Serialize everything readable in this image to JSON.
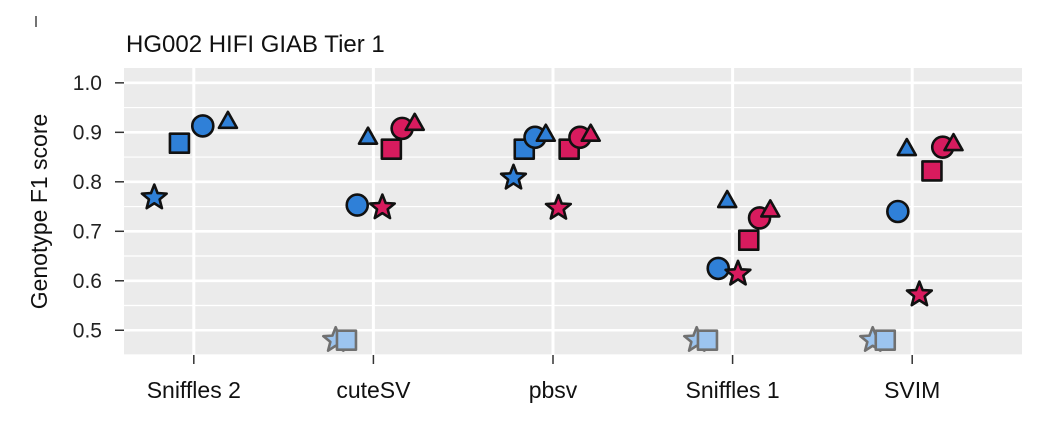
{
  "chart_data": {
    "type": "scatter",
    "title": "HG002 HIFI GIAB Tier 1",
    "xlabel": "",
    "ylabel": "Genotype F1 score",
    "ylim": [
      0.45,
      1.03
    ],
    "yticks": [
      "0.5",
      "0.6",
      "0.7",
      "0.8",
      "0.9",
      "1.0"
    ],
    "categories": [
      "Sniffles 2",
      "cuteSV",
      "pbsv",
      "Sniffles 1",
      "SVIM"
    ],
    "grid": true,
    "colors": {
      "blue": "#2f80d8",
      "red": "#d81b5e",
      "light_blue": "#9cc4ef",
      "light_edge": "#707070",
      "panel": "#ebebeb",
      "grid": "#ffffff"
    },
    "points": [
      {
        "category": "Sniffles 2",
        "offset": -0.22,
        "y": 0.768,
        "shape": "star",
        "color": "blue"
      },
      {
        "category": "Sniffles 2",
        "offset": -0.08,
        "y": 0.878,
        "shape": "square",
        "color": "blue"
      },
      {
        "category": "Sniffles 2",
        "offset": 0.05,
        "y": 0.913,
        "shape": "circle",
        "color": "blue"
      },
      {
        "category": "Sniffles 2",
        "offset": 0.19,
        "y": 0.922,
        "shape": "triangle",
        "color": "blue"
      },
      {
        "category": "cuteSV",
        "offset": -0.21,
        "y": 0.48,
        "shape": "star",
        "color": "light"
      },
      {
        "category": "cuteSV",
        "offset": -0.15,
        "y": 0.48,
        "shape": "square",
        "color": "light"
      },
      {
        "category": "cuteSV",
        "offset": -0.09,
        "y": 0.753,
        "shape": "circle",
        "color": "blue"
      },
      {
        "category": "cuteSV",
        "offset": -0.03,
        "y": 0.89,
        "shape": "triangle",
        "color": "blue"
      },
      {
        "category": "cuteSV",
        "offset": 0.05,
        "y": 0.748,
        "shape": "star",
        "color": "red"
      },
      {
        "category": "cuteSV",
        "offset": 0.1,
        "y": 0.866,
        "shape": "square",
        "color": "red"
      },
      {
        "category": "cuteSV",
        "offset": 0.16,
        "y": 0.908,
        "shape": "circle",
        "color": "red"
      },
      {
        "category": "cuteSV",
        "offset": 0.23,
        "y": 0.918,
        "shape": "triangle",
        "color": "red"
      },
      {
        "category": "pbsv",
        "offset": -0.22,
        "y": 0.808,
        "shape": "star",
        "color": "blue"
      },
      {
        "category": "pbsv",
        "offset": -0.16,
        "y": 0.866,
        "shape": "square",
        "color": "blue"
      },
      {
        "category": "pbsv",
        "offset": -0.1,
        "y": 0.89,
        "shape": "circle",
        "color": "blue"
      },
      {
        "category": "pbsv",
        "offset": -0.04,
        "y": 0.896,
        "shape": "triangle",
        "color": "blue"
      },
      {
        "category": "pbsv",
        "offset": 0.03,
        "y": 0.747,
        "shape": "star",
        "color": "red"
      },
      {
        "category": "pbsv",
        "offset": 0.09,
        "y": 0.866,
        "shape": "square",
        "color": "red"
      },
      {
        "category": "pbsv",
        "offset": 0.15,
        "y": 0.89,
        "shape": "circle",
        "color": "red"
      },
      {
        "category": "pbsv",
        "offset": 0.21,
        "y": 0.896,
        "shape": "triangle",
        "color": "red"
      },
      {
        "category": "Sniffles 1",
        "offset": -0.2,
        "y": 0.48,
        "shape": "star",
        "color": "light"
      },
      {
        "category": "Sniffles 1",
        "offset": -0.14,
        "y": 0.48,
        "shape": "square",
        "color": "light"
      },
      {
        "category": "Sniffles 1",
        "offset": -0.08,
        "y": 0.625,
        "shape": "circle",
        "color": "blue"
      },
      {
        "category": "Sniffles 1",
        "offset": -0.03,
        "y": 0.762,
        "shape": "triangle",
        "color": "blue"
      },
      {
        "category": "Sniffles 1",
        "offset": 0.03,
        "y": 0.614,
        "shape": "star",
        "color": "red"
      },
      {
        "category": "Sniffles 1",
        "offset": 0.09,
        "y": 0.682,
        "shape": "square",
        "color": "red"
      },
      {
        "category": "Sniffles 1",
        "offset": 0.15,
        "y": 0.727,
        "shape": "circle",
        "color": "red"
      },
      {
        "category": "Sniffles 1",
        "offset": 0.21,
        "y": 0.743,
        "shape": "triangle",
        "color": "red"
      },
      {
        "category": "SVIM",
        "offset": -0.22,
        "y": 0.48,
        "shape": "star",
        "color": "light"
      },
      {
        "category": "SVIM",
        "offset": -0.15,
        "y": 0.48,
        "shape": "square",
        "color": "light"
      },
      {
        "category": "SVIM",
        "offset": -0.08,
        "y": 0.74,
        "shape": "circle",
        "color": "blue"
      },
      {
        "category": "SVIM",
        "offset": -0.03,
        "y": 0.867,
        "shape": "triangle",
        "color": "blue"
      },
      {
        "category": "SVIM",
        "offset": 0.04,
        "y": 0.572,
        "shape": "star",
        "color": "red"
      },
      {
        "category": "SVIM",
        "offset": 0.11,
        "y": 0.822,
        "shape": "square",
        "color": "red"
      },
      {
        "category": "SVIM",
        "offset": 0.17,
        "y": 0.87,
        "shape": "circle",
        "color": "red"
      },
      {
        "category": "SVIM",
        "offset": 0.23,
        "y": 0.877,
        "shape": "triangle",
        "color": "red"
      }
    ]
  }
}
